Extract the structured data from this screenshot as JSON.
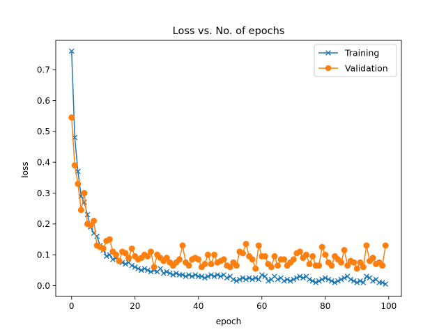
{
  "chart_data": {
    "type": "line",
    "title": "Loss vs. No. of epochs",
    "xlabel": "epoch",
    "ylabel": "loss",
    "xlim": [
      -5,
      104
    ],
    "ylim": [
      -0.035,
      0.795
    ],
    "x_ticks": [
      0,
      20,
      40,
      60,
      80,
      100
    ],
    "y_ticks": [
      0.0,
      0.1,
      0.2,
      0.3,
      0.4,
      0.5,
      0.6,
      0.7
    ],
    "x_tick_labels": [
      "0",
      "20",
      "40",
      "60",
      "80",
      "100"
    ],
    "y_tick_labels": [
      "0.0",
      "0.1",
      "0.2",
      "0.3",
      "0.4",
      "0.5",
      "0.6",
      "0.7"
    ],
    "grid": false,
    "legend_position": "top-right",
    "series": [
      {
        "name": "Training",
        "color": "#1f77b4",
        "marker": "x",
        "values": [
          0.76,
          0.48,
          0.37,
          0.29,
          0.27,
          0.23,
          0.19,
          0.17,
          0.16,
          0.13,
          0.115,
          0.095,
          0.1,
          0.085,
          0.09,
          0.08,
          0.075,
          0.07,
          0.075,
          0.065,
          0.06,
          0.055,
          0.05,
          0.055,
          0.05,
          0.045,
          0.05,
          0.045,
          0.055,
          0.04,
          0.045,
          0.04,
          0.035,
          0.04,
          0.035,
          0.035,
          0.03,
          0.035,
          0.03,
          0.035,
          0.03,
          0.03,
          0.025,
          0.03,
          0.035,
          0.03,
          0.035,
          0.03,
          0.035,
          0.025,
          0.03,
          0.02,
          0.015,
          0.02,
          0.025,
          0.02,
          0.025,
          0.02,
          0.025,
          0.02,
          0.035,
          0.03,
          0.015,
          0.02,
          0.03,
          0.02,
          0.025,
          0.015,
          0.02,
          0.015,
          0.02,
          0.025,
          0.03,
          0.025,
          0.03,
          0.02,
          0.015,
          0.01,
          0.015,
          0.02,
          0.025,
          0.02,
          0.015,
          0.01,
          0.015,
          0.02,
          0.025,
          0.03,
          0.02,
          0.015,
          0.01,
          0.015,
          0.01,
          0.03,
          0.025,
          0.015,
          0.02,
          0.01,
          0.01,
          0.005
        ]
      },
      {
        "name": "Validation",
        "color": "#ff7f0e",
        "marker": "o",
        "values": [
          0.545,
          0.39,
          0.33,
          0.245,
          0.3,
          0.2,
          0.195,
          0.21,
          0.13,
          0.125,
          0.12,
          0.145,
          0.15,
          0.11,
          0.1,
          0.08,
          0.11,
          0.105,
          0.09,
          0.12,
          0.095,
          0.085,
          0.09,
          0.1,
          0.095,
          0.11,
          0.06,
          0.1,
          0.09,
          0.08,
          0.09,
          0.075,
          0.065,
          0.075,
          0.085,
          0.13,
          0.075,
          0.065,
          0.085,
          0.09,
          0.085,
          0.06,
          0.07,
          0.1,
          0.07,
          0.1,
          0.075,
          0.08,
          0.085,
          0.065,
          0.06,
          0.075,
          0.065,
          0.11,
          0.105,
          0.135,
          0.095,
          0.085,
          0.055,
          0.13,
          0.095,
          0.095,
          0.07,
          0.06,
          0.095,
          0.065,
          0.085,
          0.085,
          0.065,
          0.075,
          0.085,
          0.105,
          0.11,
          0.09,
          0.1,
          0.07,
          0.095,
          0.065,
          0.065,
          0.125,
          0.1,
          0.075,
          0.065,
          0.095,
          0.085,
          0.075,
          0.115,
          0.065,
          0.08,
          0.075,
          0.055,
          0.075,
          0.06,
          0.13,
          0.08,
          0.09,
          0.07,
          0.075,
          0.065,
          0.13
        ]
      }
    ]
  }
}
